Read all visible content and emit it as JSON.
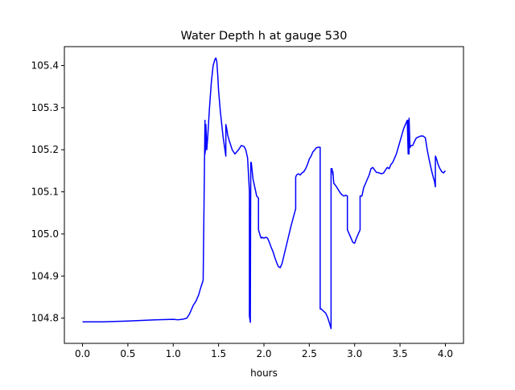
{
  "chart_data": {
    "type": "line",
    "title": "Water Depth h at gauge 530",
    "xlabel": "hours",
    "ylabel": "",
    "xlim": [
      -0.2,
      4.2
    ],
    "ylim": [
      104.74,
      105.445
    ],
    "xticks": [
      0.0,
      0.5,
      1.0,
      1.5,
      2.0,
      2.5,
      3.0,
      3.5,
      4.0
    ],
    "xtick_labels": [
      "0.0",
      "0.5",
      "1.0",
      "1.5",
      "2.0",
      "2.5",
      "3.0",
      "3.5",
      "4.0"
    ],
    "yticks": [
      104.8,
      104.9,
      105.0,
      105.1,
      105.2,
      105.3,
      105.4
    ],
    "ytick_labels": [
      "104.8",
      "104.9",
      "105.0",
      "105.1",
      "105.2",
      "105.3",
      "105.4"
    ],
    "grid": false,
    "series": [
      {
        "color": "#0000ff",
        "x": [
          0.0,
          0.2,
          0.5,
          0.8,
          1.0,
          1.05,
          1.1,
          1.15,
          1.18,
          1.2,
          1.22,
          1.25,
          1.28,
          1.3,
          1.33,
          1.35,
          1.35,
          1.36,
          1.36,
          1.37,
          1.38,
          1.4,
          1.42,
          1.44,
          1.46,
          1.47,
          1.48,
          1.49,
          1.5,
          1.52,
          1.55,
          1.58,
          1.58,
          1.59,
          1.6,
          1.62,
          1.65,
          1.68,
          1.7,
          1.72,
          1.75,
          1.78,
          1.8,
          1.82,
          1.84,
          1.84,
          1.85,
          1.855,
          1.86,
          1.87,
          1.88,
          1.9,
          1.92,
          1.94,
          1.94,
          1.96,
          1.97,
          1.98,
          2.0,
          2.02,
          2.04,
          2.06,
          2.08,
          2.1,
          2.12,
          2.14,
          2.16,
          2.18,
          2.2,
          2.22,
          2.25,
          2.3,
          2.35,
          2.35,
          2.36,
          2.38,
          2.4,
          2.42,
          2.44,
          2.46,
          2.48,
          2.5,
          2.52,
          2.54,
          2.56,
          2.58,
          2.6,
          2.62,
          2.62,
          2.63,
          2.65,
          2.68,
          2.7,
          2.72,
          2.74,
          2.74,
          2.75,
          2.76,
          2.76,
          2.77,
          2.78,
          2.8,
          2.82,
          2.84,
          2.86,
          2.88,
          2.9,
          2.92,
          2.92,
          2.94,
          2.96,
          2.98,
          3.0,
          3.02,
          3.04,
          3.06,
          3.06,
          3.08,
          3.1,
          3.12,
          3.14,
          3.16,
          3.18,
          3.2,
          3.22,
          3.24,
          3.26,
          3.28,
          3.3,
          3.32,
          3.34,
          3.36,
          3.38,
          3.4,
          3.42,
          3.44,
          3.46,
          3.48,
          3.5,
          3.52,
          3.54,
          3.56,
          3.58,
          3.59,
          3.59,
          3.6,
          3.6,
          3.61,
          3.62,
          3.64,
          3.66,
          3.68,
          3.7,
          3.72,
          3.74,
          3.76,
          3.78,
          3.8,
          3.82,
          3.84,
          3.86,
          3.88,
          3.89,
          3.89,
          3.9,
          3.92,
          3.94,
          3.96,
          3.98,
          4.0
        ],
        "y": [
          104.791,
          104.791,
          104.793,
          104.796,
          104.797,
          104.796,
          104.797,
          104.8,
          104.81,
          104.82,
          104.83,
          104.84,
          104.855,
          104.87,
          104.89,
          105.27,
          105.19,
          105.21,
          105.26,
          105.2,
          105.23,
          105.3,
          105.36,
          105.4,
          105.415,
          105.418,
          105.41,
          105.38,
          105.34,
          105.29,
          105.23,
          105.185,
          105.26,
          105.25,
          105.235,
          105.22,
          105.2,
          105.19,
          105.195,
          105.2,
          105.21,
          105.208,
          105.2,
          105.18,
          105.1,
          104.805,
          104.79,
          105.17,
          105.17,
          105.15,
          105.13,
          105.11,
          105.09,
          105.085,
          105.01,
          104.995,
          104.99,
          104.992,
          104.99,
          104.992,
          104.99,
          104.98,
          104.968,
          104.958,
          104.944,
          104.932,
          104.922,
          104.92,
          104.93,
          104.948,
          104.975,
          105.02,
          105.06,
          105.135,
          105.14,
          105.143,
          105.14,
          105.145,
          105.148,
          105.155,
          105.165,
          105.178,
          105.185,
          105.195,
          105.2,
          105.205,
          105.206,
          105.206,
          104.822,
          104.822,
          104.818,
          104.812,
          104.803,
          104.79,
          104.775,
          105.155,
          105.155,
          105.14,
          105.148,
          105.12,
          105.118,
          105.112,
          105.105,
          105.098,
          105.093,
          105.09,
          105.092,
          105.09,
          105.01,
          105.0,
          104.99,
          104.98,
          104.978,
          104.99,
          105.0,
          105.01,
          105.09,
          105.09,
          105.11,
          105.12,
          105.13,
          105.14,
          105.155,
          105.158,
          105.152,
          105.146,
          105.146,
          105.144,
          105.143,
          105.145,
          105.152,
          105.158,
          105.155,
          105.165,
          105.17,
          105.18,
          105.19,
          105.205,
          105.22,
          105.235,
          105.25,
          105.26,
          105.27,
          105.19,
          105.27,
          105.19,
          105.275,
          105.205,
          105.21,
          105.21,
          105.22,
          105.228,
          105.23,
          105.232,
          105.233,
          105.232,
          105.228,
          105.2,
          105.178,
          105.158,
          105.14,
          105.125,
          105.112,
          105.185,
          105.18,
          105.165,
          105.155,
          105.148,
          105.145,
          105.15
        ]
      }
    ]
  }
}
